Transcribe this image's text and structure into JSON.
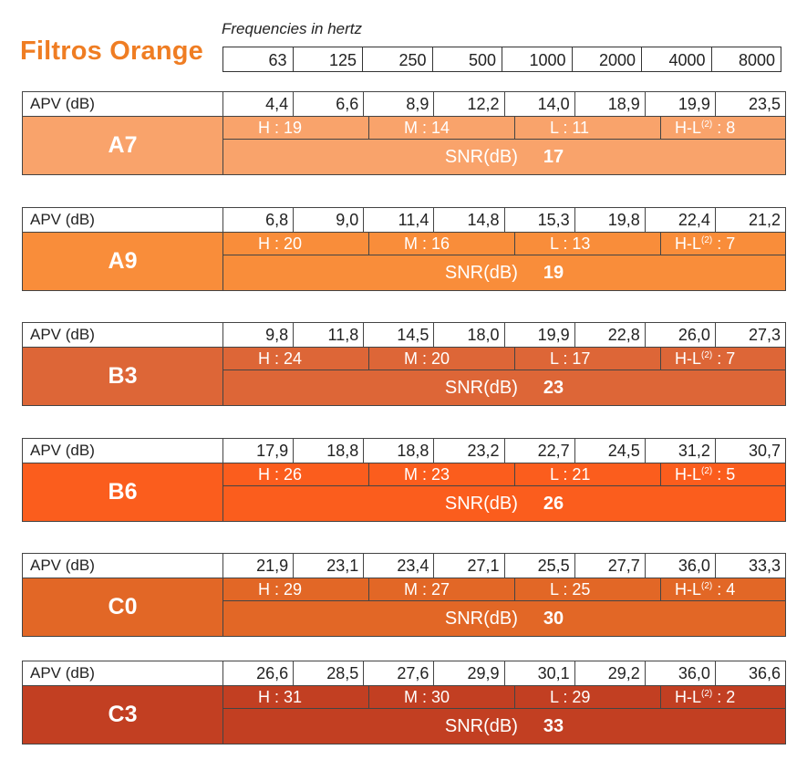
{
  "title": "Filtros Orange",
  "frequency_caption": "Frequencies in hertz",
  "frequencies": [
    "63",
    "125",
    "250",
    "500",
    "1000",
    "2000",
    "4000",
    "8000"
  ],
  "apv_label": "APV (dB)",
  "snr_label": "SNR(dB)",
  "filters": [
    {
      "model": "A7",
      "color": "#f9a36b",
      "apv": [
        "4,4",
        "6,6",
        "8,9",
        "12,2",
        "14,0",
        "18,9",
        "19,9",
        "23,5"
      ],
      "h": "H : 19",
      "m": "M : 14",
      "l": "L : 11",
      "hl_prefix": "H-L",
      "hl_sup": "(2)",
      "hl_value": " : 8",
      "snr": "17"
    },
    {
      "model": "A9",
      "color": "#f98d3a",
      "apv": [
        "6,8",
        "9,0",
        "11,4",
        "14,8",
        "15,3",
        "19,8",
        "22,4",
        "21,2"
      ],
      "h": "H : 20",
      "m": "M : 16",
      "l": "L : 13",
      "hl_prefix": "H-L",
      "hl_sup": "(2)",
      "hl_value": " : 7",
      "snr": "19"
    },
    {
      "model": "B3",
      "color": "#dd6637",
      "apv": [
        "9,8",
        "11,8",
        "14,5",
        "18,0",
        "19,9",
        "22,8",
        "26,0",
        "27,3"
      ],
      "h": "H : 24",
      "m": "M : 20",
      "l": "L : 17",
      "hl_prefix": "H-L",
      "hl_sup": "(2)",
      "hl_value": " : 7",
      "snr": "23"
    },
    {
      "model": "B6",
      "color": "#fb5d1d",
      "apv": [
        "17,9",
        "18,8",
        "18,8",
        "23,2",
        "22,7",
        "24,5",
        "31,2",
        "30,7"
      ],
      "h": "H : 26",
      "m": "M : 23",
      "l": "L : 21",
      "hl_prefix": "H-L",
      "hl_sup": "(2)",
      "hl_value": " : 5",
      "snr": "26"
    },
    {
      "model": "C0",
      "color": "#e26726",
      "apv": [
        "21,9",
        "23,1",
        "23,4",
        "27,1",
        "25,5",
        "27,7",
        "36,0",
        "33,3"
      ],
      "h": "H : 29",
      "m": "M : 27",
      "l": "L : 25",
      "hl_prefix": "H-L",
      "hl_sup": "(2)",
      "hl_value": " : 4",
      "snr": "30"
    },
    {
      "model": "C3",
      "color": "#c23f22",
      "apv": [
        "26,6",
        "28,5",
        "27,6",
        "29,9",
        "30,1",
        "29,2",
        "36,0",
        "36,6"
      ],
      "h": "H : 31",
      "m": "M : 30",
      "l": "L : 29",
      "hl_prefix": "H-L",
      "hl_sup": "(2)",
      "hl_value": " : 2",
      "snr": "33"
    }
  ]
}
